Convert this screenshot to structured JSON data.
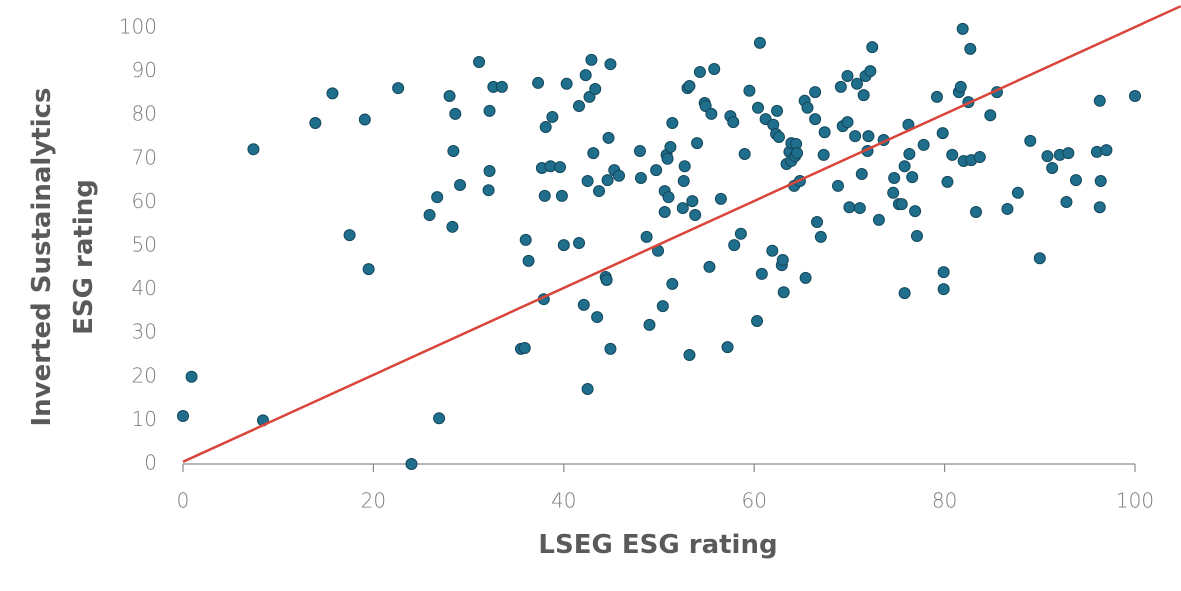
{
  "chart_data": {
    "type": "scatter",
    "xlabel": "LSEG ESG rating",
    "ylabel": "Inverted Sustainalytics ESG rating",
    "xlim": [
      0,
      100
    ],
    "ylim": [
      0,
      100
    ],
    "xticks": [
      0,
      20,
      40,
      60,
      80,
      100
    ],
    "yticks": [
      0,
      10,
      20,
      30,
      40,
      50,
      60,
      70,
      80,
      90,
      100
    ],
    "color": "#1f6e8c",
    "x": [
      0,
      0.9,
      7.4,
      8.4,
      13.9,
      15.7,
      17.5,
      19.1,
      19.5,
      22.6,
      24,
      25.9,
      26.7,
      26.9,
      28,
      28.3,
      28.4,
      28.6,
      29.1,
      31.1,
      32.2,
      32.2,
      32.1,
      32.6,
      33.5,
      35.5,
      35.9,
      36,
      36.3,
      37.3,
      37.7,
      37.9,
      38,
      38.1,
      38.6,
      38.8,
      39.6,
      39.8,
      40,
      40.3,
      41.6,
      41.6,
      42.1,
      42.3,
      42.5,
      42.5,
      42.7,
      42.9,
      43.1,
      43.3,
      43.5,
      43.7,
      44.4,
      44.5,
      44.6,
      44.7,
      44.9,
      44.9,
      45.3,
      45.8,
      48,
      48.1,
      48.7,
      49,
      49.7,
      49.9,
      50.4,
      50.6,
      50.6,
      50.8,
      50.9,
      51,
      51.2,
      51.4,
      51.4,
      52.5,
      52.6,
      52.7,
      53,
      53.2,
      53.2,
      53.5,
      53.8,
      54,
      54.3,
      54.8,
      54.9,
      55.3,
      55.5,
      55.8,
      56.5,
      57.2,
      57.5,
      57.8,
      57.9,
      58.6,
      59,
      59.5,
      60.3,
      60.4,
      60.6,
      60.8,
      61.2,
      61.9,
      62,
      62.3,
      62.4,
      62.6,
      62.9,
      63,
      63.1,
      63.4,
      63.7,
      63.9,
      63.9,
      64.2,
      64.3,
      64.4,
      64.5,
      64.8,
      65.3,
      65.4,
      65.6,
      66.4,
      66.4,
      66.6,
      67,
      67.3,
      67.4,
      68.8,
      69.1,
      69.3,
      69.8,
      69.8,
      70,
      70.6,
      70.8,
      71.1,
      71.3,
      71.5,
      71.7,
      71.9,
      72,
      72.2,
      72.4,
      73.1,
      73.6,
      74.6,
      74.7,
      75.2,
      75.5,
      75.8,
      75.8,
      76.2,
      76.3,
      76.6,
      76.9,
      77.1,
      77.8,
      79.2,
      79.8,
      79.9,
      79.9,
      80.3,
      80.8,
      81.5,
      81.7,
      81.9,
      82,
      82.5,
      82.7,
      82.8,
      83.3,
      83.7,
      84.8,
      85.5,
      86.6,
      87.7,
      89,
      90,
      90.8,
      91.3,
      92.1,
      92.8,
      93,
      93.8,
      96,
      96.3,
      96.3,
      96.4,
      97,
      100
    ],
    "values": [
      11,
      20,
      72.2,
      10,
      78.2,
      85,
      52.5,
      79,
      44.7,
      86.2,
      0,
      57.1,
      61.2,
      10.5,
      84.4,
      54.4,
      71.8,
      80.3,
      64,
      92.2,
      81,
      67.2,
      62.8,
      86.5,
      86.5,
      26.4,
      26.6,
      51.4,
      46.6,
      87.4,
      67.9,
      37.8,
      61.5,
      77.3,
      68.3,
      79.6,
      68.1,
      61.5,
      50.2,
      87.2,
      50.7,
      82.1,
      36.5,
      89.2,
      64.9,
      17.2,
      84.2,
      92.7,
      71.3,
      86,
      33.7,
      62.6,
      42.9,
      42.2,
      65.1,
      74.8,
      26.4,
      91.7,
      67.4,
      66.1,
      71.8,
      65.6,
      52.1,
      31.9,
      67.4,
      48.9,
      36.2,
      57.8,
      62.6,
      70.9,
      70,
      61.2,
      72.7,
      41.3,
      78.2,
      58.7,
      64.9,
      68.3,
      86.2,
      25,
      86.7,
      60.3,
      57.1,
      73.6,
      89.9,
      82.8,
      82.1,
      45.2,
      80.3,
      90.6,
      60.8,
      26.8,
      79.8,
      78.4,
      50.2,
      52.8,
      71.1,
      85.6,
      32.8,
      81.7,
      96.6,
      43.6,
      79.1,
      48.9,
      77.8,
      75.7,
      81,
      75,
      45.6,
      46.8,
      39.4,
      68.8,
      71.6,
      73.6,
      69.5,
      63.8,
      70.6,
      73.4,
      71.3,
      64.9,
      83.3,
      42.7,
      81.7,
      85.3,
      79.1,
      55.5,
      52.1,
      70.9,
      76.1,
      63.8,
      86.5,
      77.5,
      89,
      78.4,
      58.9,
      75.2,
      87.2,
      58.7,
      66.5,
      84.6,
      89,
      71.8,
      75.2,
      90.1,
      95.6,
      56,
      74.3,
      62.2,
      65.6,
      59.6,
      59.6,
      68.3,
      39.2,
      77.8,
      71.1,
      65.8,
      58,
      52.3,
      73.2,
      84.2,
      75.9,
      44,
      40.1,
      64.7,
      70.9,
      85.3,
      86.5,
      99.8,
      69.5,
      83,
      95.2,
      69.7,
      57.8,
      70.4,
      80,
      85.3,
      58.5,
      62.2,
      74.1,
      47.2,
      70.6,
      67.9,
      70.9,
      60.1,
      71.3,
      65.1,
      71.6,
      83.3,
      58.9,
      64.9,
      72,
      84.4
    ],
    "reference_line": {
      "x": [
        0,
        104.8
      ],
      "y": [
        0.5,
        105
      ],
      "color": "#d9453b"
    }
  }
}
